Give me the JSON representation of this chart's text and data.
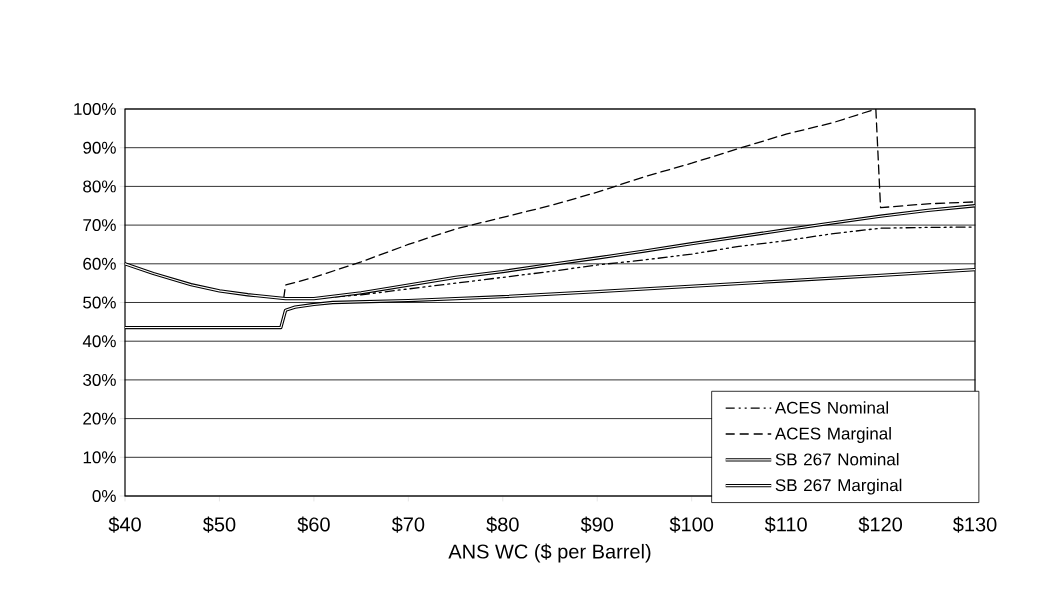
{
  "chart_data": {
    "type": "line",
    "xlabel": "ANS WC ($ per Barrel)",
    "xlim": [
      40,
      130
    ],
    "ylim": [
      0,
      100
    ],
    "xticks": [
      {
        "value": 40,
        "label": "$40"
      },
      {
        "value": 50,
        "label": "$50"
      },
      {
        "value": 60,
        "label": "$60"
      },
      {
        "value": 70,
        "label": "$70"
      },
      {
        "value": 80,
        "label": "$80"
      },
      {
        "value": 90,
        "label": "$90"
      },
      {
        "value": 100,
        "label": "$100"
      },
      {
        "value": 110,
        "label": "$110"
      },
      {
        "value": 120,
        "label": "$120"
      },
      {
        "value": 130,
        "label": "$130"
      }
    ],
    "yticks": [
      {
        "value": 0,
        "label": "0%"
      },
      {
        "value": 10,
        "label": "10%"
      },
      {
        "value": 20,
        "label": "20%"
      },
      {
        "value": 30,
        "label": "30%"
      },
      {
        "value": 40,
        "label": "40%"
      },
      {
        "value": 50,
        "label": "50%"
      },
      {
        "value": 60,
        "label": "60%"
      },
      {
        "value": 70,
        "label": "70%"
      },
      {
        "value": 80,
        "label": "80%"
      },
      {
        "value": 90,
        "label": "90%"
      },
      {
        "value": 100,
        "label": "100%"
      }
    ],
    "grid": "y",
    "legend": "bottom right",
    "series": [
      {
        "name": "ACES Nominal",
        "color": "#000000",
        "line_style": "dashdot",
        "x": [
          57,
          60,
          65,
          70,
          75,
          80,
          85,
          90,
          95,
          100,
          105,
          110,
          115,
          120,
          125,
          130
        ],
        "values": [
          51,
          51,
          52,
          53.5,
          55,
          56.5,
          58,
          59.7,
          61,
          62.5,
          64.5,
          66,
          67.8,
          69.2,
          69.4,
          69.5
        ]
      },
      {
        "name": "ACES Marginal",
        "color": "#000000",
        "line_style": "dashed",
        "x": [
          56.8,
          57,
          60,
          65,
          70,
          75,
          80,
          85,
          90,
          95,
          100,
          105,
          110,
          115,
          119.5,
          120,
          125,
          130
        ],
        "values": [
          51,
          54.5,
          56.5,
          60.5,
          65,
          69,
          72,
          75,
          78.5,
          82.5,
          86,
          89.8,
          93.5,
          96.5,
          100,
          74.5,
          75.5,
          76
        ]
      },
      {
        "name": "SB 267 Nominal",
        "color": "#000000",
        "line_style": "solid",
        "x": [
          40,
          56.5,
          57,
          58,
          60,
          62,
          70,
          75,
          80,
          90,
          100,
          110,
          120,
          130
        ],
        "values": [
          43.5,
          43.5,
          48,
          48.8,
          49.5,
          50,
          50.5,
          51,
          51.5,
          52.8,
          54.2,
          55.6,
          57,
          58.5
        ]
      },
      {
        "name": "SB 267 Marginal",
        "color": "#000000",
        "line_style": "solid",
        "x": [
          40,
          43,
          47,
          50,
          53,
          57,
          60,
          65,
          70,
          75,
          80,
          85,
          90,
          95,
          100,
          105,
          110,
          115,
          120,
          125,
          130
        ],
        "values": [
          60,
          57.5,
          54.6,
          53,
          52,
          51,
          51,
          52.5,
          54.5,
          56.5,
          58,
          59.8,
          61.5,
          63.3,
          65.2,
          67,
          68.8,
          70.6,
          72.3,
          73.8,
          75
        ]
      }
    ]
  }
}
